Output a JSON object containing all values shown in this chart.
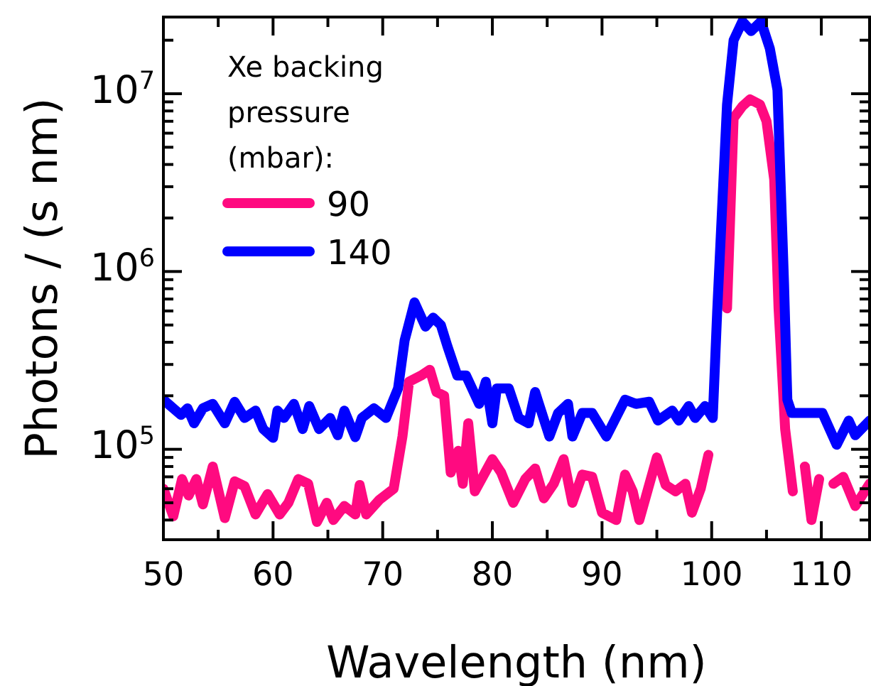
{
  "chart_data": {
    "type": "line",
    "xlabel": "Wavelength (nm)",
    "ylabel": "Photons / (s nm)",
    "legend_title": "Xe backing pressure (mbar):",
    "legend": "top left",
    "log": "y",
    "grid": false,
    "line_style": "solid",
    "marker": "none",
    "xlim": [
      50,
      114.4
    ],
    "ylim": [
      31000,
      27000000
    ],
    "xticks": [
      50,
      {
        "value": 55,
        "label": null
      },
      60,
      {
        "value": 65,
        "label": null
      },
      70,
      {
        "value": 75,
        "label": null
      },
      80,
      {
        "value": 85,
        "label": null
      },
      90,
      {
        "value": 95,
        "label": null
      },
      100,
      {
        "value": 105,
        "label": null
      },
      110
    ],
    "yticks": [
      {
        "value": 40000,
        "label": null
      },
      {
        "value": 50000,
        "label": null
      },
      {
        "value": 60000,
        "label": null
      },
      {
        "value": 70000,
        "label": null
      },
      {
        "value": 80000,
        "label": null
      },
      {
        "value": 90000,
        "label": null
      },
      {
        "value": 100000,
        "label": "10$^{5}$"
      },
      {
        "value": 200000,
        "label": null
      },
      {
        "value": 300000,
        "label": null
      },
      {
        "value": 400000,
        "label": null
      },
      {
        "value": 500000,
        "label": null
      },
      {
        "value": 600000,
        "label": null
      },
      {
        "value": 700000,
        "label": null
      },
      {
        "value": 800000,
        "label": null
      },
      {
        "value": 900000,
        "label": null
      },
      {
        "value": 1000000,
        "label": "10$^{6}$"
      },
      {
        "value": 2000000,
        "label": null
      },
      {
        "value": 3000000,
        "label": null
      },
      {
        "value": 4000000,
        "label": null
      },
      {
        "value": 5000000,
        "label": null
      },
      {
        "value": 6000000,
        "label": null
      },
      {
        "value": 7000000,
        "label": null
      },
      {
        "value": 8000000,
        "label": null
      },
      {
        "value": 9000000,
        "label": null
      },
      {
        "value": 10000000,
        "label": "10$^{7}$"
      },
      {
        "value": 20000000,
        "label": null
      }
    ],
    "series": [
      {
        "name": "90",
        "color": "#ff0a80",
        "x": [
          50,
          50.9,
          51.7,
          52.3,
          53,
          53.6,
          54.5,
          55.6,
          56.5,
          57.4,
          58.4,
          59.5,
          60.6,
          61.4,
          62.3,
          63.2,
          64,
          64.9,
          65.5,
          66.5,
          67.5,
          67.9,
          68.5,
          69.7,
          71,
          71.8,
          72.4,
          73.5,
          74.3,
          74.9,
          75.6,
          76.2,
          76.9,
          77.3,
          77.8,
          78.4,
          80,
          80.8,
          81.9,
          83,
          83.9,
          84.7,
          85.6,
          86.5,
          87.3,
          88.2,
          89.1,
          90,
          91.3,
          92.1,
          92.8,
          93.4,
          95,
          95.8,
          96.7,
          97.6,
          98.2,
          99,
          99.7,
          100.3,
          101.4,
          102,
          102.8,
          103.5,
          104.4,
          105,
          105.7,
          106.1,
          106.7,
          107.4,
          108.3,
          108.5,
          109.1,
          109.8,
          110.4,
          111.1,
          112,
          113.1,
          114.4
        ],
        "values": [
          60000,
          42000,
          68000,
          55000,
          68000,
          49000,
          80000,
          41000,
          66000,
          62000,
          43000,
          56000,
          43000,
          50000,
          68000,
          64000,
          39000,
          50000,
          40000,
          48000,
          43000,
          63000,
          43000,
          52000,
          60000,
          118000,
          240000,
          260000,
          280000,
          210000,
          200000,
          74000,
          98000,
          64000,
          140000,
          58000,
          88000,
          74000,
          50000,
          68000,
          78000,
          53000,
          64000,
          88000,
          50000,
          72000,
          70000,
          44000,
          40000,
          72000,
          58000,
          40000,
          90000,
          63000,
          58000,
          64000,
          44000,
          60000,
          93000,
          null,
          620000,
          7300000,
          8500000,
          9300000,
          8700000,
          7000000,
          3300000,
          620000,
          130000,
          58000,
          null,
          80000,
          40000,
          68000,
          null,
          64000,
          70000,
          48000,
          64000
        ]
      },
      {
        "name": "140",
        "color": "#0000ff",
        "x": [
          50,
          51.6,
          52.2,
          52.8,
          53.6,
          54.5,
          55.6,
          56.5,
          57.4,
          58.4,
          59.1,
          60,
          60.4,
          61,
          61.9,
          62.7,
          63.3,
          64.2,
          65.2,
          65.9,
          66.5,
          67.5,
          68.1,
          69.2,
          70.3,
          71.4,
          72,
          72.9,
          73.9,
          74.6,
          75.3,
          75.9,
          76.8,
          77.6,
          78.8,
          79.4,
          80,
          80.4,
          81.5,
          82.4,
          83.3,
          83.9,
          85.2,
          86,
          86.9,
          87.3,
          88.2,
          89.1,
          90.4,
          92.1,
          93.1,
          94.3,
          95.1,
          96.4,
          97,
          97.9,
          98.5,
          99.4,
          100.1,
          100.5,
          101.4,
          102,
          102.8,
          103.6,
          104.5,
          105.3,
          106,
          106.6,
          106.9,
          107.3,
          108.8,
          110.1,
          111.4,
          112.5,
          113.1,
          114.4
        ],
        "values": [
          190000,
          156000,
          170000,
          140000,
          170000,
          180000,
          140000,
          185000,
          150000,
          165000,
          130000,
          116000,
          165000,
          150000,
          180000,
          130000,
          175000,
          130000,
          150000,
          120000,
          165000,
          117000,
          150000,
          170000,
          150000,
          220000,
          410000,
          670000,
          490000,
          550000,
          500000,
          380000,
          260000,
          260000,
          180000,
          240000,
          140000,
          220000,
          220000,
          150000,
          140000,
          210000,
          118000,
          160000,
          180000,
          118000,
          160000,
          160000,
          118000,
          190000,
          180000,
          185000,
          145000,
          165000,
          145000,
          175000,
          150000,
          175000,
          150000,
          590000,
          8700000,
          20000000,
          25500000,
          22500000,
          25500000,
          18000000,
          10500000,
          850000,
          190000,
          160000,
          160000,
          160000,
          106000,
          145000,
          120000,
          145000
        ]
      }
    ]
  }
}
